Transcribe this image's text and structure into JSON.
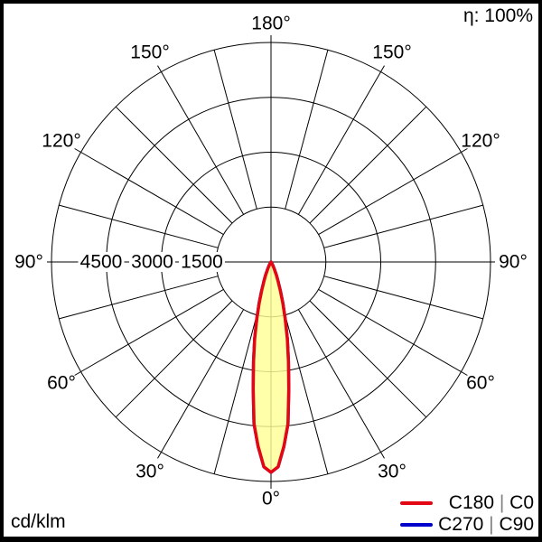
{
  "header": {
    "efficiency": "η: 100%"
  },
  "footer": {
    "unit": "cd/klm"
  },
  "legend": {
    "items": [
      {
        "label": "C180 | C0",
        "color": "#e30613"
      },
      {
        "label": "C270 | C90",
        "color": "#0000cd"
      }
    ],
    "separator_color": "#808080"
  },
  "chart_data": {
    "type": "polar",
    "subtype": "luminous-intensity-distribution",
    "unit": "cd/klm",
    "efficiency_percent": 100,
    "zero_angle_position": "bottom",
    "angle_label_step_deg": 30,
    "angle_grid_step_deg": 15,
    "angle_labels": [
      "0°",
      "30°",
      "60°",
      "90°",
      "120°",
      "150°",
      "180°"
    ],
    "radial_axis": {
      "min": 0,
      "max": 6000,
      "ring_step": 1500,
      "rings": [
        1500,
        3000,
        4500,
        6000
      ],
      "tick_labels": [
        "4500",
        "3000",
        "1500"
      ]
    },
    "grid_color": "#000000",
    "curve_fill_color": "#ffff96",
    "series": [
      {
        "name": "C180 | C0",
        "color": "#e30613",
        "gamma_deg": [
          0,
          2,
          4,
          6,
          8,
          10,
          12,
          14,
          16,
          18,
          20,
          22,
          24,
          26,
          28,
          30,
          33,
          36,
          40,
          45,
          60,
          90
        ],
        "values_cd_per_klm": [
          5750,
          5600,
          5050,
          4450,
          3500,
          2750,
          2150,
          1600,
          1170,
          830,
          580,
          400,
          270,
          175,
          110,
          65,
          28,
          10,
          0,
          0,
          0,
          0
        ]
      },
      {
        "name": "C270 | C90",
        "color": "#0000cd",
        "gamma_deg": [
          0,
          2,
          4,
          6,
          8,
          10,
          12,
          14,
          16,
          18,
          20,
          22,
          24,
          26,
          28,
          30,
          33,
          36,
          40,
          45,
          60,
          90
        ],
        "values_cd_per_klm": [
          5750,
          5600,
          5050,
          4450,
          3500,
          2750,
          2150,
          1600,
          1170,
          830,
          580,
          400,
          270,
          175,
          110,
          65,
          28,
          10,
          0,
          0,
          0,
          0
        ]
      }
    ]
  }
}
